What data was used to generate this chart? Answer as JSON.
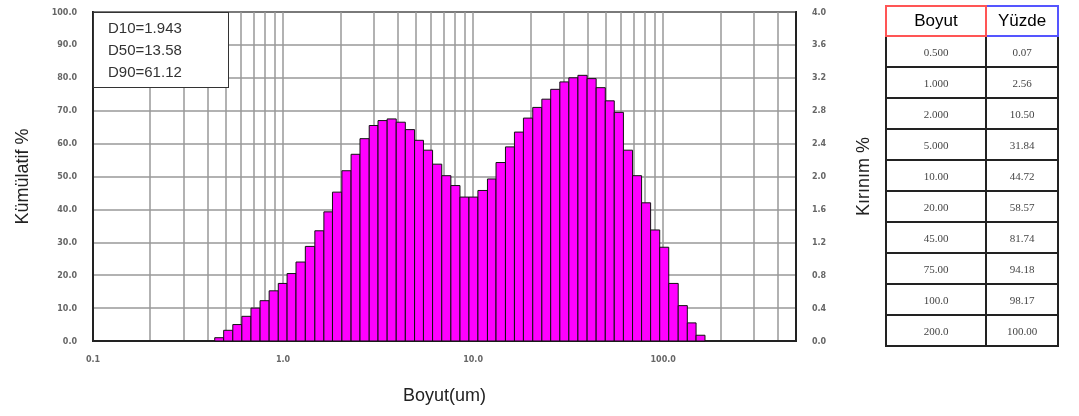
{
  "chart_data": [
    {
      "type": "histogram",
      "xlabel": "Boyut(um)",
      "ylabel": "Kümülatif %",
      "y2label": "Kırınım %",
      "annotations": [
        "D10=1.943",
        "D50=13.58",
        "D90=61.12"
      ],
      "log": "x",
      "grid": true,
      "bins": [
        0.437,
        0.487,
        0.544,
        0.607,
        0.678,
        0.757,
        0.845,
        0.944,
        1.05,
        1.17,
        1.31,
        1.47,
        1.64,
        1.82,
        2.04,
        2.28,
        2.54,
        2.84,
        3.16,
        3.53,
        3.94,
        4.4,
        4.92,
        5.48,
        6.12,
        6.84,
        7.64,
        8.53,
        9.51,
        10.6,
        11.9,
        13.2,
        14.8,
        16.5,
        18.4,
        20.6,
        23.0,
        25.6,
        28.6,
        31.9,
        35.6,
        39.8,
        44.4,
        49.6,
        55.3,
        61.8,
        69.0,
        77.0,
        85.9,
        95.9,
        107,
        120,
        134,
        149,
        166
      ],
      "series": [
        {
          "color": "#ff00ff",
          "axis": "y2",
          "values": [
            0.04,
            0.13,
            0.2,
            0.3,
            0.4,
            0.49,
            0.61,
            0.7,
            0.82,
            0.96,
            1.15,
            1.34,
            1.57,
            1.81,
            2.07,
            2.27,
            2.46,
            2.62,
            2.68,
            2.7,
            2.66,
            2.57,
            2.44,
            2.32,
            2.15,
            2.01,
            1.89,
            1.75,
            1.75,
            1.83,
            1.97,
            2.17,
            2.36,
            2.54,
            2.71,
            2.84,
            2.94,
            3.06,
            3.15,
            3.2,
            3.23,
            3.19,
            3.08,
            2.92,
            2.78,
            2.32,
            2.01,
            1.68,
            1.35,
            1.14,
            0.7,
            0.43,
            0.22,
            0.07
          ]
        }
      ],
      "xlim": [
        0.1,
        500
      ],
      "xticks": [
        {
          "value": 0.1,
          "label": "0.1"
        },
        {
          "value": 0.2,
          "label": null
        },
        {
          "value": 0.3,
          "label": null
        },
        {
          "value": 0.4,
          "label": null
        },
        {
          "value": 0.5,
          "label": null
        },
        {
          "value": 0.6,
          "label": null
        },
        {
          "value": 0.7,
          "label": null
        },
        {
          "value": 0.8,
          "label": null
        },
        {
          "value": 0.9,
          "label": null
        },
        {
          "value": 1,
          "label": "1.0"
        },
        {
          "value": 2,
          "label": null
        },
        {
          "value": 3,
          "label": null
        },
        {
          "value": 4,
          "label": null
        },
        {
          "value": 5,
          "label": null
        },
        {
          "value": 6,
          "label": null
        },
        {
          "value": 7,
          "label": null
        },
        {
          "value": 8,
          "label": null
        },
        {
          "value": 9,
          "label": null
        },
        {
          "value": 10,
          "label": "10.0"
        },
        {
          "value": 20,
          "label": null
        },
        {
          "value": 30,
          "label": null
        },
        {
          "value": 40,
          "label": null
        },
        {
          "value": 50,
          "label": null
        },
        {
          "value": 60,
          "label": null
        },
        {
          "value": 70,
          "label": null
        },
        {
          "value": 80,
          "label": null
        },
        {
          "value": 90,
          "label": null
        },
        {
          "value": 100,
          "label": "100.0"
        },
        {
          "value": 200,
          "label": null
        },
        {
          "value": 300,
          "label": null
        },
        {
          "value": 400,
          "label": null
        },
        {
          "value": 500,
          "label": null
        }
      ],
      "ylim": [
        0,
        100
      ],
      "yticks": [
        {
          "value": 0,
          "label": "0.0"
        },
        {
          "value": 10,
          "label": "10.0"
        },
        {
          "value": 20,
          "label": "20.0"
        },
        {
          "value": 30,
          "label": "30.0"
        },
        {
          "value": 40,
          "label": "40.0"
        },
        {
          "value": 50,
          "label": "50.0"
        },
        {
          "value": 60,
          "label": "60.0"
        },
        {
          "value": 70,
          "label": "70.0"
        },
        {
          "value": 80,
          "label": "80.0"
        },
        {
          "value": 90,
          "label": "90.0"
        },
        {
          "value": 100,
          "label": "100.0"
        }
      ],
      "y2lim": [
        0,
        4
      ],
      "y2ticks": [
        {
          "value": 0,
          "label": "0.0"
        },
        0.4,
        0.8,
        1.2,
        1.6,
        {
          "value": 2,
          "label": "2.0"
        },
        2.4,
        2.8,
        3.2,
        3.6,
        {
          "value": 4,
          "label": "4.0"
        }
      ]
    },
    {
      "type": "other",
      "xlabel": "Boyut",
      "ylabel": "Yüzde",
      "categories": [
        "0.500",
        "1.000",
        "2.000",
        "5.000",
        "10.00",
        "20.00",
        "45.00",
        "75.00",
        "100.0",
        "200.0"
      ],
      "value_labels": [
        "0.07",
        "2.56",
        "10.50",
        "31.84",
        "44.72",
        "58.57",
        "81.74",
        "94.18",
        "98.17",
        "100.00"
      ]
    }
  ]
}
